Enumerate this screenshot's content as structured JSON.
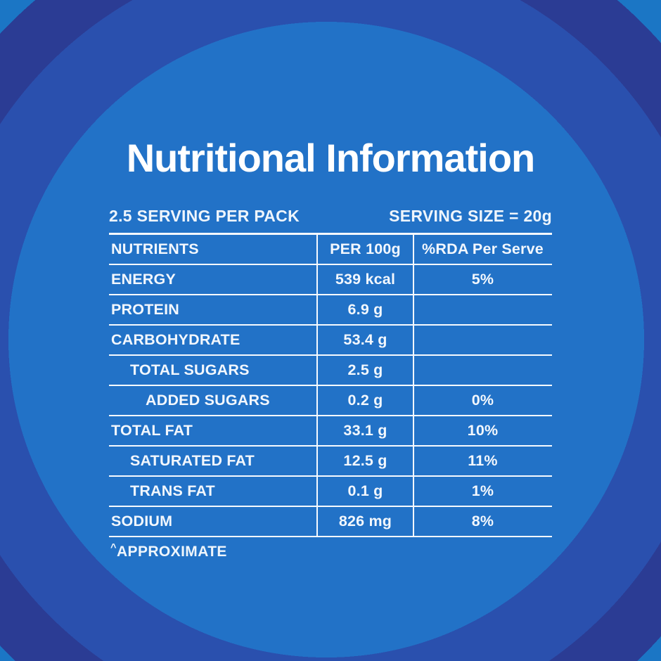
{
  "page": {
    "title": "Nutritional Information"
  },
  "background": {
    "base": "#1b76c5",
    "ring_navy": "#2b3c94",
    "ring_royal": "#2a50ae",
    "inner_circle": "#2272c7",
    "text_color": "#ffffff"
  },
  "serving": {
    "per_pack": "2.5 SERVING PER PACK",
    "size": "SERVING SIZE = 20g"
  },
  "table": {
    "headers": {
      "nutrients": "NUTRIENTS",
      "per_100g": "PER 100g",
      "rda": "%RDA Per Serve"
    },
    "rows": [
      {
        "label": "ENERGY",
        "per_100g": "539 kcal",
        "rda": "5%"
      },
      {
        "label": "PROTEIN",
        "per_100g": "6.9 g",
        "rda": ""
      },
      {
        "label": "CARBOHYDRATE",
        "per_100g": "53.4 g",
        "rda": ""
      },
      {
        "label": "TOTAL SUGARS",
        "per_100g": "2.5 g",
        "rda": ""
      },
      {
        "label": "ADDED SUGARS",
        "per_100g": "0.2 g",
        "rda": "0%"
      },
      {
        "label": "TOTAL FAT",
        "per_100g": "33.1 g",
        "rda": "10%"
      },
      {
        "label": "SATURATED FAT",
        "per_100g": "12.5 g",
        "rda": "11%"
      },
      {
        "label": "TRANS FAT",
        "per_100g": "0.1 g",
        "rda": "1%"
      },
      {
        "label": "SODIUM",
        "per_100g": "826 mg",
        "rda": "8%"
      }
    ]
  },
  "footnote": {
    "marker": "^",
    "text": "APPROXIMATE"
  }
}
